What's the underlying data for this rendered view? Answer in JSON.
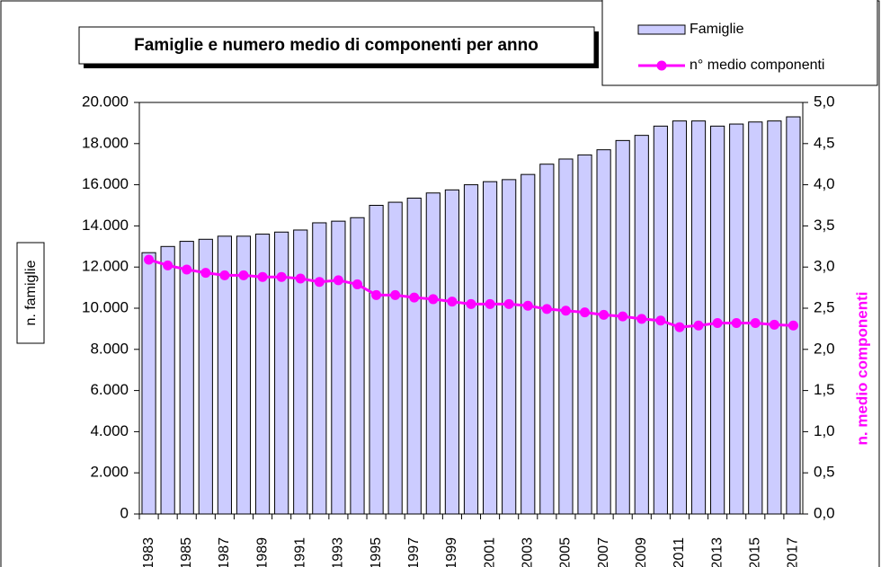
{
  "chart_data": {
    "type": "bar_line",
    "title": "Famiglie e numero medio di componenti per anno",
    "y_label": "n. famiglie",
    "y2_label": "n. medio componenti",
    "categories": [
      "1983",
      null,
      "1985",
      null,
      "1987",
      null,
      "1989",
      null,
      "1991",
      null,
      "1993",
      null,
      "1995",
      null,
      "1997",
      null,
      "1999",
      null,
      "2001",
      null,
      "2003",
      null,
      "2005",
      null,
      "2007",
      null,
      "2009",
      null,
      "2011",
      null,
      "2013",
      null,
      "2015",
      null,
      "2017"
    ],
    "series": [
      {
        "name": "Famiglie",
        "type": "bar",
        "color": "#ccccff",
        "values": [
          12700,
          13000,
          13250,
          13350,
          13500,
          13500,
          13600,
          13700,
          13800,
          14150,
          14230,
          14400,
          15000,
          15150,
          15350,
          15600,
          15750,
          16000,
          16150,
          16250,
          16500,
          17000,
          17250,
          17450,
          17700,
          18150,
          18400,
          18850,
          19100,
          19100,
          18850,
          18950,
          19050,
          19100,
          19300
        ]
      },
      {
        "name": "n° medio componenti",
        "type": "line",
        "axis": "y2",
        "color": "#ff00ff",
        "values": [
          3.09,
          3.02,
          2.97,
          2.93,
          2.9,
          2.9,
          2.88,
          2.88,
          2.86,
          2.82,
          2.84,
          2.79,
          2.66,
          2.66,
          2.63,
          2.61,
          2.58,
          2.55,
          2.55,
          2.55,
          2.53,
          2.49,
          2.47,
          2.45,
          2.42,
          2.4,
          2.37,
          2.35,
          2.27,
          2.29,
          2.32,
          2.32,
          2.32,
          2.3,
          2.29
        ]
      }
    ],
    "ylim": [
      0,
      20000
    ],
    "yticks": [
      0,
      {
        "value": 2000,
        "label": "2.000"
      },
      {
        "value": 4000,
        "label": "4.000"
      },
      {
        "value": 6000,
        "label": "6.000"
      },
      {
        "value": 8000,
        "label": "8.000"
      },
      {
        "value": 10000,
        "label": "10.000"
      },
      {
        "value": 12000,
        "label": "12.000"
      },
      {
        "value": 14000,
        "label": "14.000"
      },
      {
        "value": 16000,
        "label": "16.000"
      },
      {
        "value": 18000,
        "label": "18.000"
      },
      {
        "value": 20000,
        "label": "20.000"
      }
    ],
    "y2lim": [
      0,
      5
    ],
    "y2ticks": [
      {
        "value": 0,
        "label": "0,0"
      },
      {
        "value": 0.5,
        "label": "0,5"
      },
      {
        "value": 1,
        "label": "1,0"
      },
      {
        "value": 1.5,
        "label": "1,5"
      },
      {
        "value": 2,
        "label": "2,0"
      },
      {
        "value": 2.5,
        "label": "2,5"
      },
      {
        "value": 3,
        "label": "3,0"
      },
      {
        "value": 3.5,
        "label": "3,5"
      },
      {
        "value": 4,
        "label": "4,0"
      },
      {
        "value": 4.5,
        "label": "4,5"
      },
      {
        "value": 5,
        "label": "5,0"
      }
    ],
    "grid": false,
    "legend": "top-right"
  }
}
